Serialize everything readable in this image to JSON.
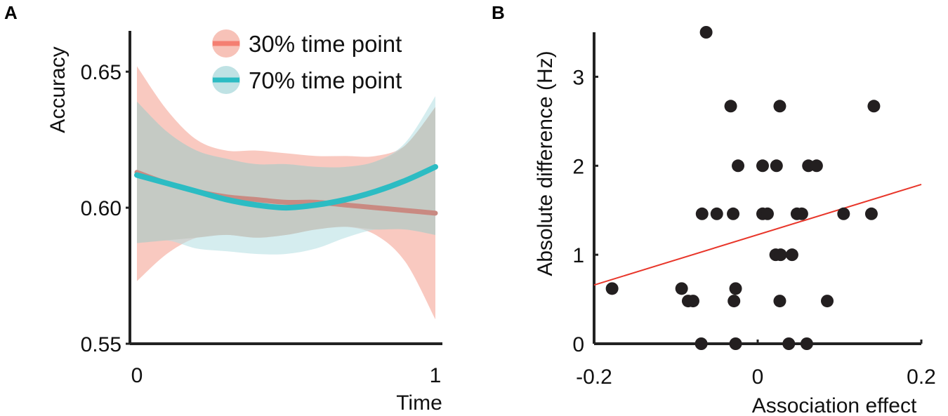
{
  "panel_labels": {
    "a": "A",
    "b": "B"
  },
  "chart_data": [
    {
      "panel": "A",
      "type": "line",
      "title": "",
      "xlabel": "Time",
      "ylabel": "Accuracy",
      "xlim": [
        0,
        1
      ],
      "ylim": [
        0.55,
        0.665
      ],
      "xticks": [
        {
          "value": 0,
          "label": "0"
        },
        {
          "value": 1,
          "label": "1"
        }
      ],
      "yticks": [
        {
          "value": 0.55,
          "label": "0.55"
        },
        {
          "value": 0.6,
          "label": "0.60"
        },
        {
          "value": 0.65,
          "label": "0.65"
        }
      ],
      "legend_position": "top-right",
      "series": [
        {
          "name": "30% time point",
          "color": "#f47f72",
          "band_color": "#f7b7ab",
          "line_color": "#c98a82",
          "x": [
            0.0,
            0.1,
            0.2,
            0.3,
            0.4,
            0.5,
            0.6,
            0.7,
            0.8,
            0.9,
            1.0
          ],
          "y": [
            0.613,
            0.609,
            0.606,
            0.604,
            0.603,
            0.602,
            0.602,
            0.601,
            0.6,
            0.599,
            0.598
          ],
          "lower": [
            0.573,
            0.583,
            0.589,
            0.59,
            0.589,
            0.59,
            0.592,
            0.593,
            0.59,
            0.58,
            0.559
          ],
          "upper": [
            0.652,
            0.636,
            0.625,
            0.621,
            0.621,
            0.62,
            0.619,
            0.619,
            0.619,
            0.623,
            0.637
          ]
        },
        {
          "name": "70% time point",
          "color": "#2cbcc3",
          "band_color": "#b3dfe1",
          "line_color": "#2cbcc3",
          "x": [
            0.0,
            0.1,
            0.2,
            0.3,
            0.4,
            0.5,
            0.6,
            0.7,
            0.8,
            0.9,
            1.0
          ],
          "y": [
            0.612,
            0.609,
            0.606,
            0.603,
            0.601,
            0.6,
            0.601,
            0.603,
            0.606,
            0.61,
            0.615
          ],
          "lower": [
            0.587,
            0.588,
            0.585,
            0.584,
            0.583,
            0.583,
            0.585,
            0.589,
            0.592,
            0.592,
            0.59
          ],
          "upper": [
            0.639,
            0.628,
            0.621,
            0.618,
            0.616,
            0.616,
            0.615,
            0.615,
            0.617,
            0.624,
            0.641
          ]
        }
      ]
    },
    {
      "panel": "B",
      "type": "scatter",
      "title": "",
      "xlabel": "Association effect",
      "ylabel": "Absolute difference (Hz)",
      "xlim": [
        -0.2,
        0.2
      ],
      "ylim": [
        0,
        3.5
      ],
      "xticks": [
        {
          "value": -0.2,
          "label": "-0.2"
        },
        {
          "value": 0,
          "label": "0"
        },
        {
          "value": 0.2,
          "label": "0.2"
        }
      ],
      "yticks": [
        {
          "value": 0,
          "label": "0"
        },
        {
          "value": 1,
          "label": "1"
        },
        {
          "value": 2,
          "label": "2"
        },
        {
          "value": 3,
          "label": "3"
        }
      ],
      "point_color": "#231f20",
      "fit_line": {
        "color": "#e8362a",
        "x": [
          -0.2,
          0.2
        ],
        "y": [
          0.66,
          1.79
        ]
      },
      "points": [
        {
          "x": -0.063,
          "y": 3.5
        },
        {
          "x": -0.033,
          "y": 2.67
        },
        {
          "x": 0.027,
          "y": 2.67
        },
        {
          "x": 0.142,
          "y": 2.67
        },
        {
          "x": -0.024,
          "y": 2.0
        },
        {
          "x": 0.006,
          "y": 2.0
        },
        {
          "x": 0.023,
          "y": 2.0
        },
        {
          "x": 0.062,
          "y": 2.0
        },
        {
          "x": 0.072,
          "y": 2.0
        },
        {
          "x": -0.068,
          "y": 1.46
        },
        {
          "x": -0.05,
          "y": 1.46
        },
        {
          "x": -0.03,
          "y": 1.46
        },
        {
          "x": 0.006,
          "y": 1.46
        },
        {
          "x": 0.012,
          "y": 1.46
        },
        {
          "x": 0.048,
          "y": 1.46
        },
        {
          "x": 0.054,
          "y": 1.46
        },
        {
          "x": 0.105,
          "y": 1.46
        },
        {
          "x": 0.139,
          "y": 1.46
        },
        {
          "x": 0.022,
          "y": 1.0
        },
        {
          "x": 0.028,
          "y": 1.0
        },
        {
          "x": 0.042,
          "y": 1.0
        },
        {
          "x": -0.178,
          "y": 0.62
        },
        {
          "x": -0.093,
          "y": 0.62
        },
        {
          "x": -0.027,
          "y": 0.62
        },
        {
          "x": -0.085,
          "y": 0.48
        },
        {
          "x": -0.079,
          "y": 0.48
        },
        {
          "x": -0.029,
          "y": 0.48
        },
        {
          "x": 0.027,
          "y": 0.48
        },
        {
          "x": 0.085,
          "y": 0.48
        },
        {
          "x": -0.069,
          "y": 0.0
        },
        {
          "x": -0.027,
          "y": 0.0
        },
        {
          "x": 0.038,
          "y": 0.0
        },
        {
          "x": 0.06,
          "y": 0.0
        }
      ]
    }
  ]
}
